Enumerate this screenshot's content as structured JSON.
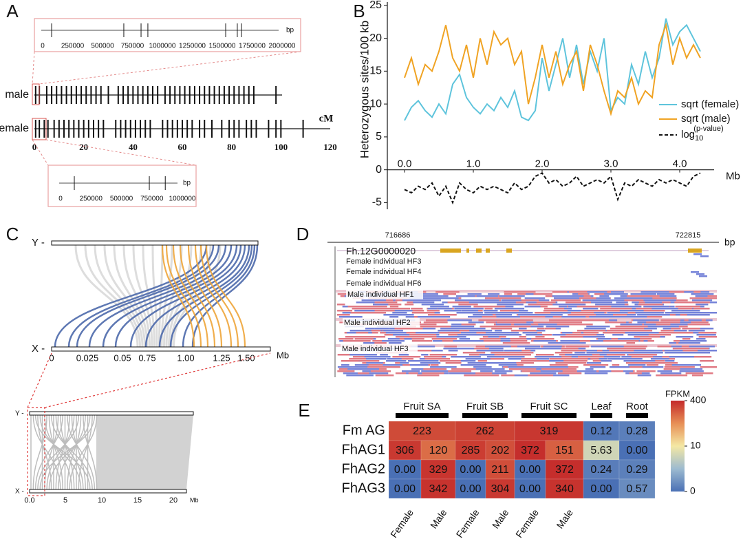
{
  "panel_labels": [
    "A",
    "B",
    "C",
    "D",
    "E"
  ],
  "panel_a": {
    "rows": [
      {
        "name": "male",
        "markers": [
          0.5,
          2,
          5,
          7,
          9,
          11,
          13,
          15,
          17,
          19,
          21,
          23,
          25,
          27,
          30,
          34,
          36,
          38,
          40,
          42,
          44,
          46,
          48,
          50,
          53,
          55,
          57,
          59,
          61,
          63,
          65,
          67,
          69,
          71,
          73,
          75,
          77,
          79,
          81,
          83,
          85,
          87,
          89,
          98
        ]
      },
      {
        "name": "female",
        "markers": [
          0.5,
          2,
          4,
          5.5,
          8,
          10,
          12,
          14,
          16,
          18,
          20,
          22,
          24,
          26,
          28,
          33,
          35,
          37,
          39,
          41,
          43,
          45,
          47,
          52,
          54,
          56,
          58,
          60,
          62,
          64,
          67,
          69,
          72,
          76,
          79,
          81,
          83,
          86,
          88,
          90,
          95,
          98,
          100,
          109
        ]
      }
    ],
    "xlim": [
      0,
      120
    ],
    "xticks": [
      0,
      20,
      40,
      60,
      80,
      100,
      120
    ],
    "xlabel": "cM",
    "zoom_top": {
      "unit": "bp",
      "xlim": [
        0,
        2000000
      ],
      "xticks": [
        0,
        250000,
        500000,
        750000,
        1000000,
        1250000,
        1500000,
        1750000,
        2000000
      ],
      "markers": [
        75000,
        678000,
        822000,
        879000,
        1529000,
        1626000,
        1661000
      ]
    },
    "zoom_bottom": {
      "unit": "bp",
      "xlim": [
        0,
        1000000
      ],
      "xticks": [
        0,
        250000,
        500000,
        750000,
        1000000
      ],
      "markers": [
        113000,
        729000,
        860000
      ]
    }
  },
  "chart_data": [
    {
      "type": "line",
      "ylabel": "Heterozygous sites/100 kb",
      "xlabel": "Mb",
      "x": [
        0.0,
        0.1,
        0.2,
        0.3,
        0.4,
        0.5,
        0.6,
        0.7,
        0.8,
        0.9,
        1.0,
        1.1,
        1.2,
        1.3,
        1.4,
        1.5,
        1.6,
        1.7,
        1.8,
        1.9,
        2.0,
        2.1,
        2.2,
        2.3,
        2.4,
        2.5,
        2.6,
        2.7,
        2.8,
        2.9,
        3.0,
        3.1,
        3.2,
        3.3,
        3.4,
        3.5,
        3.6,
        3.7,
        3.8,
        3.9,
        4.0,
        4.1,
        4.2,
        4.3
      ],
      "series": [
        {
          "name": "sqrt (female)",
          "color": "#5ec4dc",
          "style": "solid",
          "values": [
            7.5,
            9.5,
            10.5,
            9,
            8,
            10,
            8.5,
            13,
            14.5,
            11,
            9.5,
            8.5,
            10,
            9,
            11,
            9.5,
            12,
            8,
            7.5,
            9,
            17,
            12,
            16,
            20,
            14,
            19,
            13,
            18,
            15,
            20,
            9,
            11,
            10,
            16,
            13,
            18,
            14,
            17,
            23,
            19,
            21,
            22,
            20,
            18
          ]
        },
        {
          "name": "sqrt (male)",
          "color": "#f0a323",
          "style": "solid",
          "values": [
            14,
            17,
            13,
            16,
            15,
            18,
            22,
            17,
            15,
            19,
            14,
            20,
            16,
            21,
            19,
            20,
            16,
            18,
            10,
            14,
            19,
            14,
            18,
            13,
            16,
            18,
            12,
            19,
            16,
            12,
            8.5,
            12,
            11,
            14,
            10,
            12,
            11,
            19,
            22,
            16,
            20,
            17,
            19,
            17
          ]
        },
        {
          "name": "log",
          "name_sub": "10",
          "name_sup": "(p-value)",
          "color": "#111111",
          "style": "dashed",
          "values": [
            -3,
            -3.5,
            -2.5,
            -3,
            -2,
            -4,
            -2.5,
            -5,
            -2,
            -3,
            -3.5,
            -2.5,
            -3,
            -2.5,
            -3,
            -3.5,
            -2,
            -3,
            -2.5,
            -1,
            -0.5,
            -2,
            -1.5,
            -2.5,
            -2,
            -1,
            -2.5,
            -2,
            -1.5,
            -2,
            -1,
            -4.5,
            -2,
            -2.5,
            -1.5,
            -2,
            -2.5,
            -1.5,
            -2,
            -1.5,
            -2,
            -2.5,
            -1,
            -0.5
          ]
        }
      ],
      "xlim": [
        -0.25,
        4.5
      ],
      "xticks": [
        {
          "value": 0,
          "label": "0.0"
        },
        {
          "value": 1,
          "label": "1.0"
        },
        {
          "value": 2,
          "label": "2.0"
        },
        {
          "value": 3,
          "label": "3.0"
        },
        {
          "value": 4,
          "label": "4.0"
        }
      ],
      "ylim": [
        -6,
        25.5
      ],
      "yticks": [
        -5,
        0,
        5,
        10,
        15,
        20,
        25
      ],
      "legend": "right"
    },
    {
      "type": "heatmap",
      "groups": [
        "Fruit SA",
        "Fruit SB",
        "Fruit SC",
        "Leaf",
        "Root"
      ],
      "column_labels": [
        "Female",
        "Male",
        "Female",
        "Male",
        "Female",
        "Male"
      ],
      "rows": [
        "Fm AG",
        "FhAG1",
        "FhAG2",
        "FhAG3"
      ],
      "values": [
        [
          223,
          262,
          319,
          0.12,
          0.28
        ],
        [
          306,
          120,
          285,
          202,
          372,
          151,
          5.63,
          0
        ],
        [
          0,
          329,
          0,
          211,
          0,
          372,
          0.24,
          0.29
        ],
        [
          0,
          342,
          0,
          304,
          0,
          340,
          0,
          0.57
        ]
      ],
      "value_labels": [
        [
          "223",
          "262",
          "319",
          "0.12",
          "0.28"
        ],
        [
          "306",
          "120",
          "285",
          "202",
          "372",
          "151",
          "5.63",
          "0.00"
        ],
        [
          "0.00",
          "329",
          "0.00",
          "211",
          "0.00",
          "372",
          "0.24",
          "0.29"
        ],
        [
          "0.00",
          "342",
          "0.00",
          "304",
          "0.00",
          "340",
          "0.00",
          "0.57"
        ]
      ],
      "colorbar_label": "FPKM",
      "colorbar_ticks": [
        0,
        10,
        400
      ],
      "colors": [
        "#4a70b5",
        "#9dbbd0",
        "#f4e8a4",
        "#e78f56",
        "#c42a2a"
      ]
    }
  ],
  "panel_c": {
    "top": {
      "y_label": "Y -",
      "x_label": "X -",
      "xticks": [
        "0",
        "0.025",
        "0.05",
        "0.75",
        "1.00",
        "1.25",
        "1.50"
      ],
      "unit": "Mb"
    },
    "bottom": {
      "y_label": "Y -",
      "x_label": "X -",
      "xticks": [
        "0.0",
        "5",
        "10",
        "15",
        "20"
      ],
      "unit": "Mb"
    }
  },
  "panel_d": {
    "start": "716686",
    "end": "722815",
    "unit": "bp",
    "gene": "Fh.12G0000020",
    "tracks": [
      "Female individual HF3",
      "Female individual HF4",
      "Female individual HF6",
      "Male individual HF1",
      "Male individual HF2",
      "Male individual HF3"
    ]
  }
}
